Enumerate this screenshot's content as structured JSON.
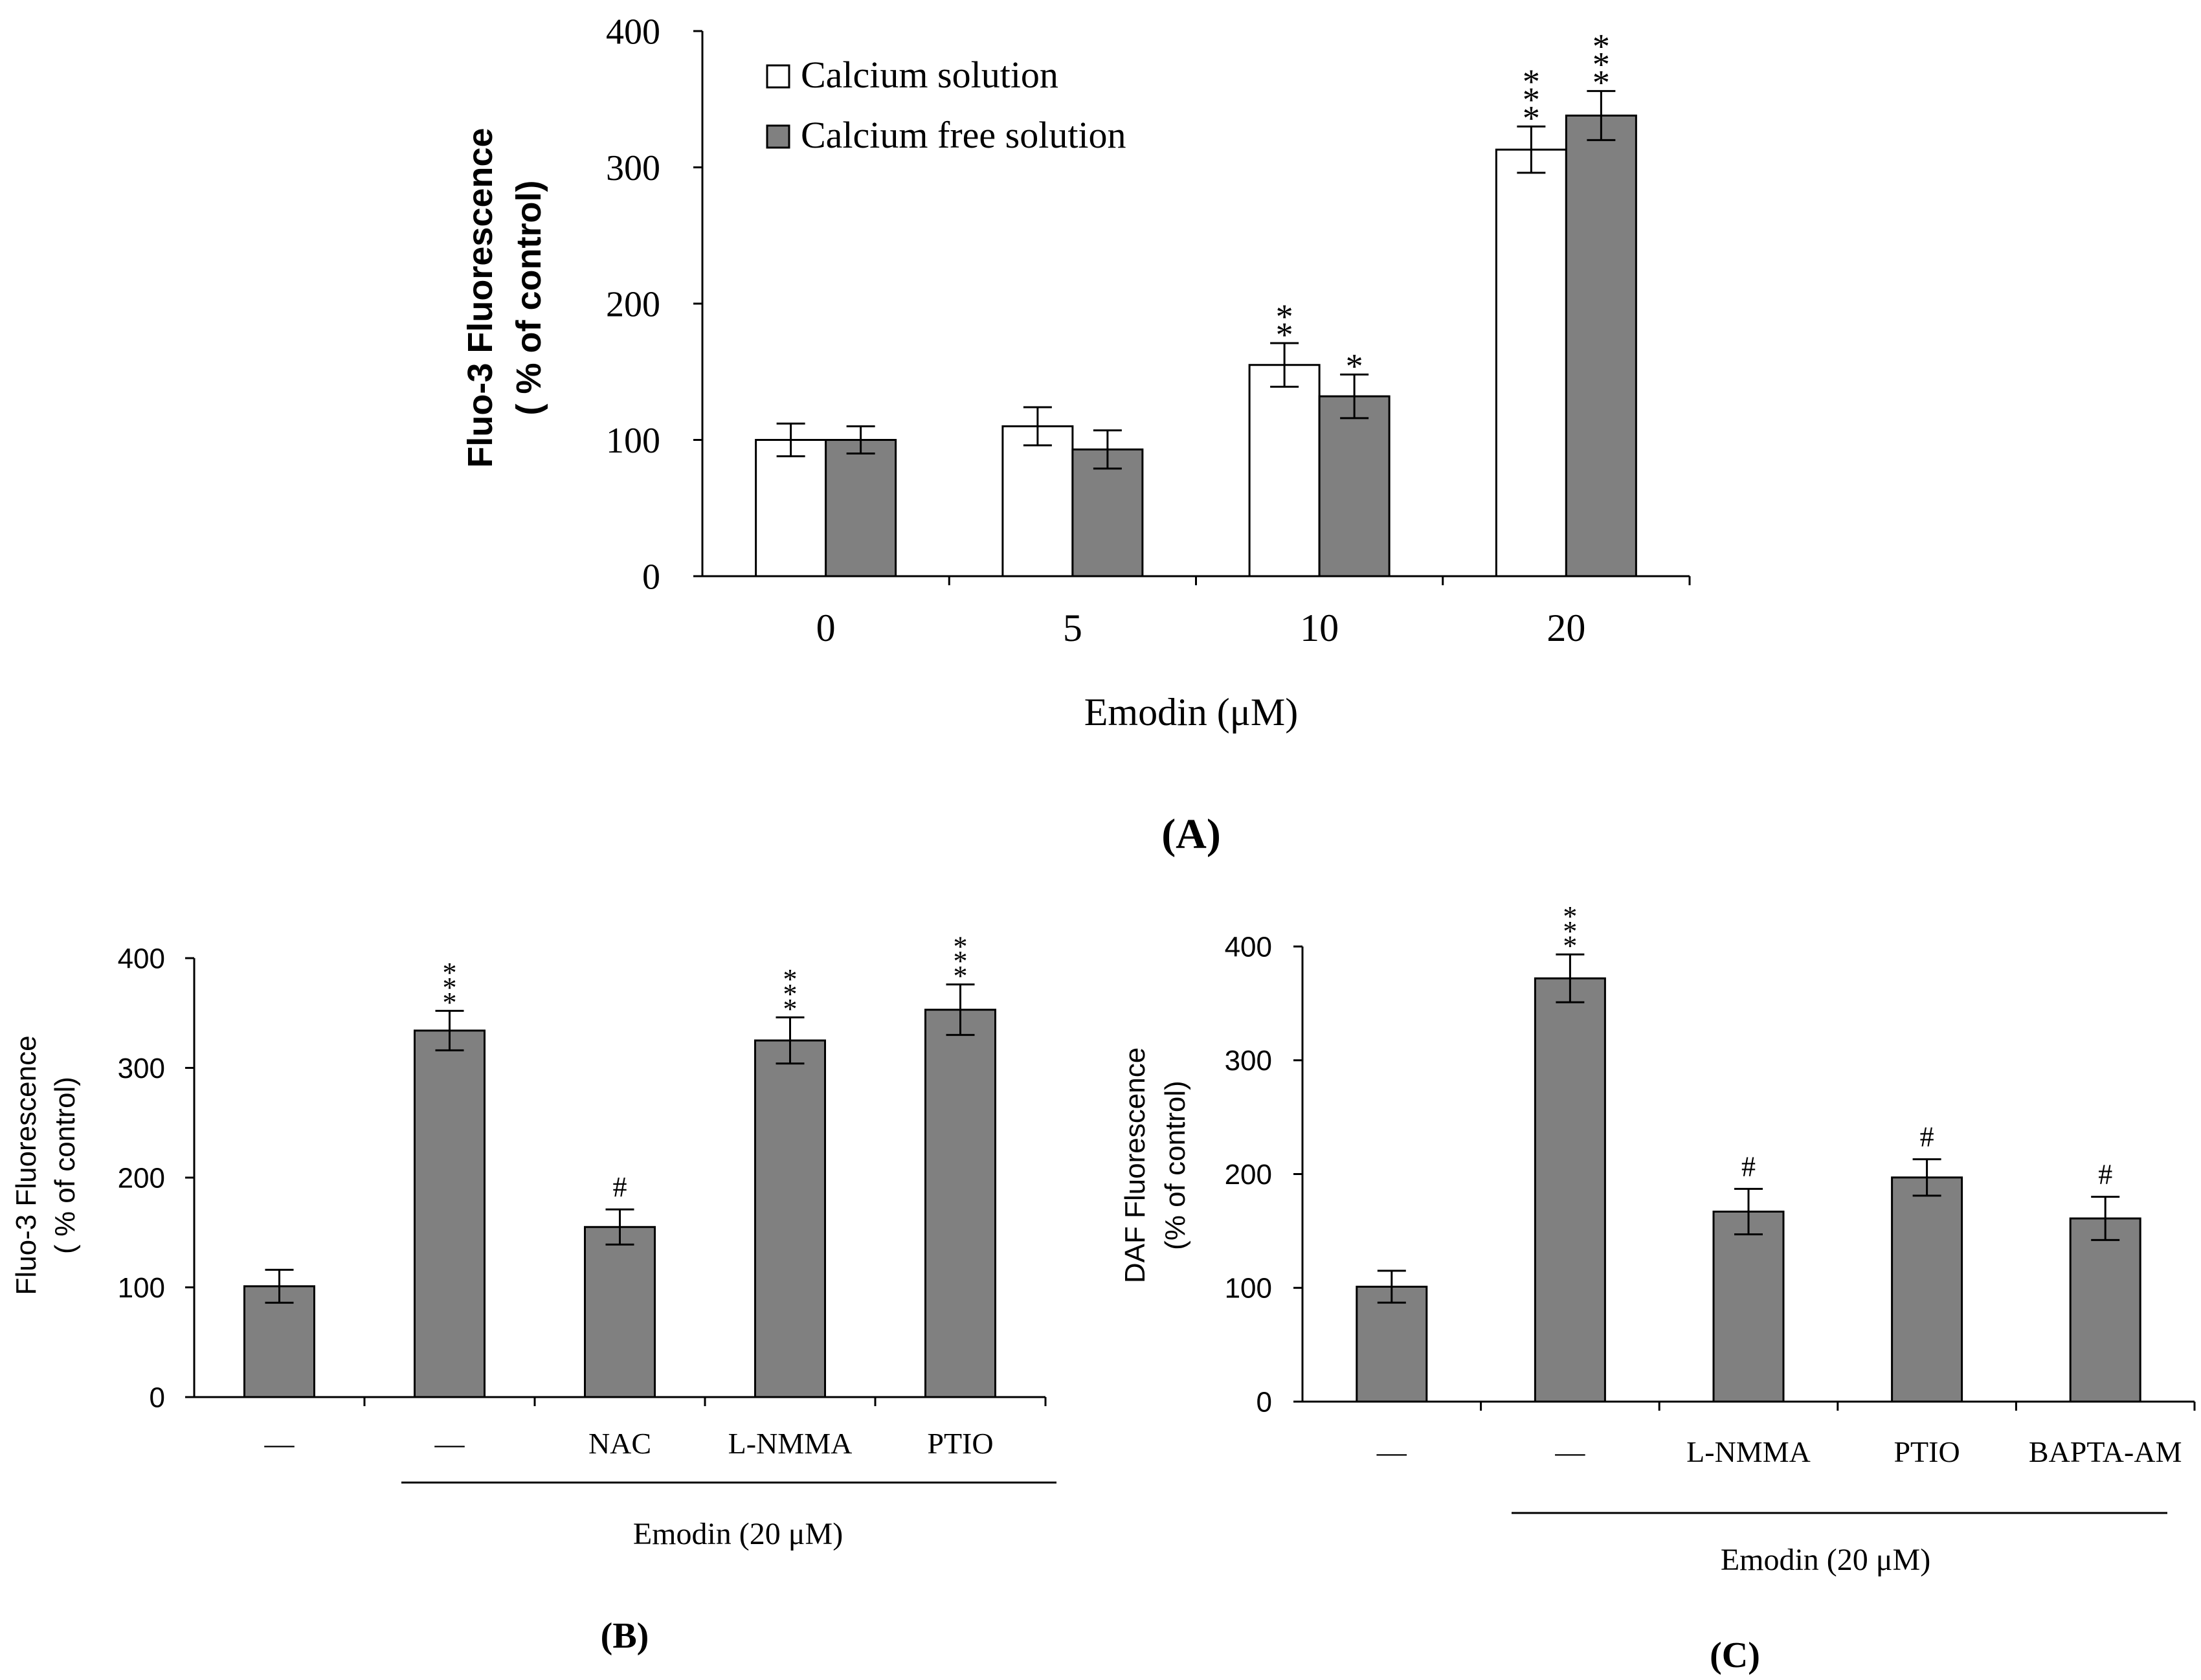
{
  "figure": {
    "label_a": "(A)",
    "label_b": "(B)",
    "label_c": "(C)"
  },
  "chart_data": [
    {
      "panel": "A",
      "type": "bar",
      "title": "",
      "xlabel": "Emodin (μM)",
      "ylabel": "Fluo-3 Fluorescence",
      "ylabel2": "( % of control)",
      "ylim": [
        0,
        400
      ],
      "yticks": [
        0,
        100,
        200,
        300,
        400
      ],
      "categories": [
        "0",
        "5",
        "10",
        "20"
      ],
      "legend_position": "top-left",
      "series": [
        {
          "name": "Calcium solution",
          "style": "open",
          "values": [
            100,
            110,
            155,
            313
          ],
          "errors": [
            12,
            14,
            16,
            17
          ],
          "annotations": [
            "",
            "",
            "**",
            "***"
          ]
        },
        {
          "name": "Calcium free solution",
          "style": "gray",
          "values": [
            100,
            93,
            132,
            338
          ],
          "errors": [
            10,
            14,
            16,
            18
          ],
          "annotations": [
            "",
            "",
            "*",
            "***"
          ]
        }
      ]
    },
    {
      "panel": "B",
      "type": "bar",
      "title": "",
      "xlabel": "Emodin (20 μM)",
      "ylabel": "Fluo-3 Fluorescence",
      "ylabel2": "( % of control)",
      "ylim": [
        0,
        400
      ],
      "yticks": [
        0,
        100,
        200,
        300,
        400
      ],
      "categories": [
        "—",
        "—",
        "NAC",
        "L-NMMA",
        "PTIO"
      ],
      "values": [
        101,
        334,
        155,
        325,
        353
      ],
      "errors": [
        15,
        18,
        16,
        21,
        23
      ],
      "annotations": [
        "",
        "***",
        "#",
        "***",
        "***"
      ]
    },
    {
      "panel": "C",
      "type": "bar",
      "title": "",
      "xlabel": "Emodin (20 μM)",
      "ylabel": "DAF Fluorescence",
      "ylabel2": "(% of control)",
      "ylim": [
        0,
        400
      ],
      "yticks": [
        0,
        100,
        200,
        300,
        400
      ],
      "categories": [
        "—",
        "—",
        "L-NMMA",
        "PTIO",
        "BAPTA-AM"
      ],
      "values": [
        101,
        372,
        167,
        197,
        161
      ],
      "errors": [
        14,
        21,
        20,
        16,
        19
      ],
      "annotations": [
        "",
        "***",
        "#",
        "#",
        "#"
      ]
    }
  ]
}
